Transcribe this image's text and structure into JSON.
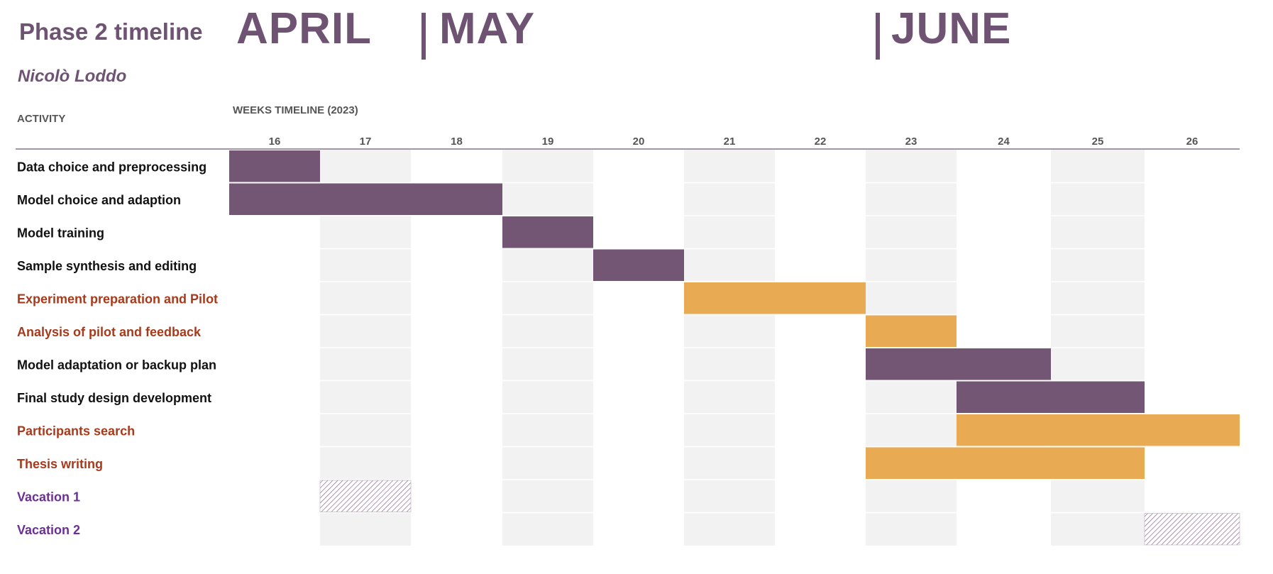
{
  "header": {
    "title": "Phase 2 timeline",
    "author": "Nicolò Loddo",
    "activity_label": "ACTIVITY",
    "weeks_label": "WEEKS TIMELINE (2023)"
  },
  "months": [
    {
      "label": "APRIL",
      "separator": false
    },
    {
      "label": "MAY",
      "separator": true
    },
    {
      "label": "JUNE",
      "separator": true
    }
  ],
  "colors": {
    "purple": "#735674",
    "orange": "#e8aa52",
    "stripe_bg": "#f2f2f2",
    "dark_text": "#111111",
    "red_text": "#a63a1c",
    "violet_text": "#6b2f97",
    "title": "#6e5373"
  },
  "chart_data": {
    "type": "gantt",
    "weeks": [
      16,
      17,
      18,
      19,
      20,
      21,
      22,
      23,
      24,
      25,
      26
    ],
    "tasks": [
      {
        "label": "Data choice and preprocessing",
        "start": 16,
        "end": 16,
        "fill": "purple",
        "text_color": "dark"
      },
      {
        "label": "Model choice and adaption",
        "start": 16,
        "end": 18,
        "fill": "purple",
        "text_color": "dark"
      },
      {
        "label": "Model training",
        "start": 19,
        "end": 19,
        "fill": "purple",
        "text_color": "dark"
      },
      {
        "label": "Sample synthesis and editing",
        "start": 20,
        "end": 20,
        "fill": "purple",
        "text_color": "dark"
      },
      {
        "label": "Experiment preparation and Pilot",
        "start": 21,
        "end": 22,
        "fill": "orange",
        "text_color": "red"
      },
      {
        "label": "Analysis of pilot and feedback",
        "start": 23,
        "end": 23,
        "fill": "orange",
        "text_color": "red"
      },
      {
        "label": "Model adaptation or backup plan",
        "start": 23,
        "end": 24,
        "fill": "purple",
        "text_color": "dark"
      },
      {
        "label": "Final study design development",
        "start": 24,
        "end": 25,
        "fill": "purple",
        "text_color": "dark"
      },
      {
        "label": "Participants search",
        "start": 24,
        "end": 26,
        "fill": "orange",
        "text_color": "red"
      },
      {
        "label": "Thesis writing",
        "start": 23,
        "end": 25,
        "fill": "orange",
        "text_color": "red"
      },
      {
        "label": "Vacation 1",
        "start": 17,
        "end": 17,
        "fill": "hatch",
        "text_color": "violet"
      },
      {
        "label": "Vacation 2",
        "start": 26,
        "end": 26,
        "fill": "hatch",
        "text_color": "violet"
      }
    ],
    "shaded_weeks": [
      17,
      19,
      21,
      23,
      25
    ],
    "grid": false,
    "legend": "none"
  }
}
